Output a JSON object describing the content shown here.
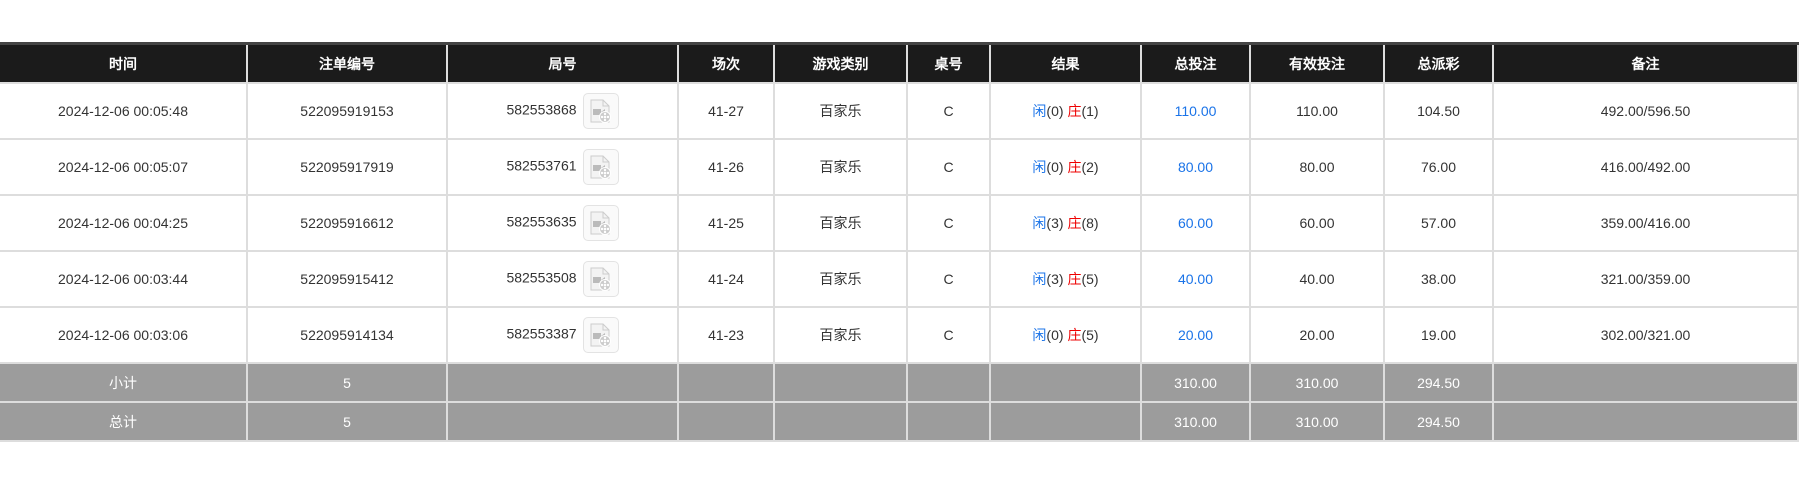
{
  "columns": [
    "时间",
    "注单编号",
    "局号",
    "场次",
    "游戏类别",
    "桌号",
    "结果",
    "总投注",
    "有效投注",
    "总派彩",
    "备注"
  ],
  "rows": [
    {
      "time": "2024-12-06 00:05:48",
      "bet_id": "522095919153",
      "round": "582553868",
      "session": "41-27",
      "game": "百家乐",
      "table": "C",
      "player_label": "闲",
      "player": "(0)",
      "banker_label": "庄",
      "banker": "(1)",
      "total_bet": "110.00",
      "valid_bet": "110.00",
      "payout": "104.50",
      "note": "492.00/596.50"
    },
    {
      "time": "2024-12-06 00:05:07",
      "bet_id": "522095917919",
      "round": "582553761",
      "session": "41-26",
      "game": "百家乐",
      "table": "C",
      "player_label": "闲",
      "player": "(0)",
      "banker_label": "庄",
      "banker": "(2)",
      "total_bet": "80.00",
      "valid_bet": "80.00",
      "payout": "76.00",
      "note": "416.00/492.00"
    },
    {
      "time": "2024-12-06 00:04:25",
      "bet_id": "522095916612",
      "round": "582553635",
      "session": "41-25",
      "game": "百家乐",
      "table": "C",
      "player_label": "闲",
      "player": "(3)",
      "banker_label": "庄",
      "banker": "(8)",
      "total_bet": "60.00",
      "valid_bet": "60.00",
      "payout": "57.00",
      "note": "359.00/416.00"
    },
    {
      "time": "2024-12-06 00:03:44",
      "bet_id": "522095915412",
      "round": "582553508",
      "session": "41-24",
      "game": "百家乐",
      "table": "C",
      "player_label": "闲",
      "player": "(3)",
      "banker_label": "庄",
      "banker": "(5)",
      "total_bet": "40.00",
      "valid_bet": "40.00",
      "payout": "38.00",
      "note": "321.00/359.00"
    },
    {
      "time": "2024-12-06 00:03:06",
      "bet_id": "522095914134",
      "round": "582553387",
      "session": "41-23",
      "game": "百家乐",
      "table": "C",
      "player_label": "闲",
      "player": "(0)",
      "banker_label": "庄",
      "banker": "(5)",
      "total_bet": "20.00",
      "valid_bet": "20.00",
      "payout": "19.00",
      "note": "302.00/321.00"
    }
  ],
  "subtotal": {
    "label": "小计",
    "count": "5",
    "total_bet": "310.00",
    "valid_bet": "310.00",
    "payout": "294.50"
  },
  "total": {
    "label": "总计",
    "count": "5",
    "total_bet": "310.00",
    "valid_bet": "310.00",
    "payout": "294.50"
  },
  "icons": {
    "replay": "video-file-icon"
  },
  "colors": {
    "player": "#1a73e8",
    "banker": "#ee0000",
    "header_bg": "#1b1b1b",
    "summary_bg": "#9c9c9c"
  }
}
